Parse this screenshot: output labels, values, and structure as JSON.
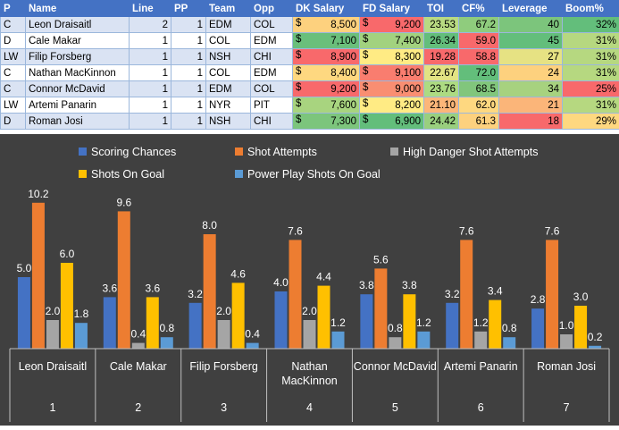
{
  "table": {
    "headers": [
      "P",
      "Name",
      "Line",
      "PP",
      "Team",
      "Opp",
      "DK Salary",
      "FD Salary",
      "TOI",
      "CF%",
      "Leverage",
      "Boom%"
    ],
    "currency_symbol": "$",
    "rows": [
      {
        "p": "C",
        "name": "Leon Draisaitl",
        "line": "2",
        "pp": "1",
        "team": "EDM",
        "opp": "COL",
        "dk": "8,500",
        "fd": "9,200",
        "toi": "23.53",
        "cf": "67.2",
        "lev": "40",
        "boom": "32%",
        "colors": {
          "dk": "#fdd17e",
          "fd": "#f8696b",
          "toi": "#b9db82",
          "cf": "#8fcc7d",
          "lev": "#7cc57c",
          "boom": "#63be7b"
        }
      },
      {
        "p": "D",
        "name": "Cale Makar",
        "line": "1",
        "pp": "1",
        "team": "COL",
        "opp": "EDM",
        "dk": "7,100",
        "fd": "7,400",
        "toi": "26.34",
        "cf": "59.0",
        "lev": "45",
        "boom": "31%",
        "colors": {
          "dk": "#6abf7b",
          "fd": "#a2d27f",
          "toi": "#63be7b",
          "cf": "#f8696b",
          "lev": "#63be7b",
          "boom": "#b6d880"
        }
      },
      {
        "p": "LW",
        "name": "Filip Forsberg",
        "line": "1",
        "pp": "1",
        "team": "NSH",
        "opp": "CHI",
        "dk": "8,900",
        "fd": "8,300",
        "toi": "19.28",
        "cf": "58.8",
        "lev": "27",
        "boom": "31%",
        "colors": {
          "dk": "#f8696b",
          "fd": "#ffeb84",
          "toi": "#f8696b",
          "cf": "#f8696b",
          "lev": "#e6e283",
          "boom": "#b6d880"
        }
      },
      {
        "p": "C",
        "name": "Nathan MacKinnon",
        "line": "1",
        "pp": "1",
        "team": "COL",
        "opp": "EDM",
        "dk": "8,400",
        "fd": "9,100",
        "toi": "22.67",
        "cf": "72.0",
        "lev": "24",
        "boom": "31%",
        "colors": {
          "dk": "#fed880",
          "fd": "#f97d6f",
          "toi": "#e2e383",
          "cf": "#63be7b",
          "lev": "#fdd17e",
          "boom": "#b6d880"
        }
      },
      {
        "p": "C",
        "name": "Connor McDavid",
        "line": "1",
        "pp": "1",
        "team": "EDM",
        "opp": "COL",
        "dk": "9,200",
        "fd": "9,000",
        "toi": "23.76",
        "cf": "68.5",
        "lev": "34",
        "boom": "25%",
        "colors": {
          "dk": "#f8696b",
          "fd": "#f98e72",
          "toi": "#addb82",
          "cf": "#81c67c",
          "lev": "#a7d27f",
          "boom": "#f8696b"
        }
      },
      {
        "p": "LW",
        "name": "Artemi Panarin",
        "line": "1",
        "pp": "1",
        "team": "NYR",
        "opp": "PIT",
        "dk": "7,600",
        "fd": "8,200",
        "toi": "21.10",
        "cf": "62.0",
        "lev": "21",
        "boom": "31%",
        "colors": {
          "dk": "#a8d47f",
          "fd": "#ffeb84",
          "toi": "#fcb679",
          "cf": "#fed880",
          "lev": "#fbb579",
          "boom": "#b6d880"
        }
      },
      {
        "p": "D",
        "name": "Roman Josi",
        "line": "1",
        "pp": "1",
        "team": "NSH",
        "opp": "CHI",
        "dk": "7,300",
        "fd": "6,900",
        "toi": "24.42",
        "cf": "61.3",
        "lev": "18",
        "boom": "29%",
        "colors": {
          "dk": "#7cc57c",
          "fd": "#63be7b",
          "toi": "#99cf7e",
          "cf": "#fdd17e",
          "lev": "#f8696b",
          "boom": "#fed880"
        }
      }
    ]
  },
  "chart_data": {
    "type": "bar",
    "title": "",
    "xlabel": "",
    "ylabel": "",
    "ylim": [
      0,
      11
    ],
    "categories": [
      {
        "name": "Leon Draisaitl",
        "number": "1"
      },
      {
        "name": "Cale Makar",
        "number": "2"
      },
      {
        "name": "Filip Forsberg",
        "number": "3"
      },
      {
        "name": "Nathan MacKinnon",
        "number": "4"
      },
      {
        "name": "Connor McDavid",
        "number": "5"
      },
      {
        "name": "Artemi Panarin",
        "number": "6"
      },
      {
        "name": "Roman Josi",
        "number": "7"
      }
    ],
    "series": [
      {
        "name": "Scoring Chances",
        "color": "#4472c4",
        "values": [
          5.0,
          3.6,
          3.2,
          4.0,
          3.8,
          3.2,
          2.8
        ]
      },
      {
        "name": "Shot Attempts",
        "color": "#ed7d31",
        "values": [
          10.2,
          9.6,
          8.0,
          7.6,
          5.6,
          7.6,
          7.6
        ]
      },
      {
        "name": "High Danger Shot Attempts",
        "color": "#a5a5a5",
        "values": [
          2.0,
          0.4,
          2.0,
          2.0,
          0.8,
          1.2,
          1.0
        ]
      },
      {
        "name": "Shots On Goal",
        "color": "#ffc000",
        "values": [
          6.0,
          3.6,
          4.6,
          4.4,
          3.8,
          3.4,
          3.0
        ]
      },
      {
        "name": "Power Play Shots On Goal",
        "color": "#5b9bd5",
        "values": [
          1.8,
          0.8,
          0.4,
          1.2,
          1.2,
          0.8,
          0.2
        ]
      }
    ],
    "background": "#404040",
    "label_color": "#ffffff"
  }
}
